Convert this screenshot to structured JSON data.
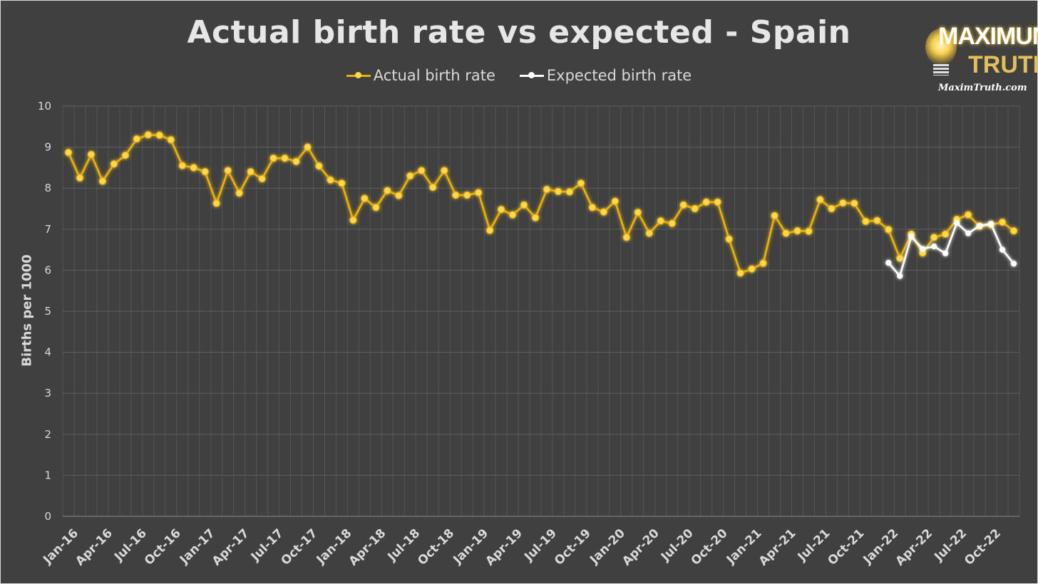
{
  "chart_data": {
    "type": "line",
    "title": "Actual birth rate vs expected - Spain",
    "ylabel": "Births per 1000",
    "xlabel": "",
    "ylim": [
      0,
      10
    ],
    "yticks": [
      0,
      1,
      2,
      3,
      4,
      5,
      6,
      7,
      8,
      9,
      10
    ],
    "grid": true,
    "legend_position": "top-center",
    "x_tick_labels": [
      "Jan-16",
      "Apr-16",
      "Jul-16",
      "Oct-16",
      "Jan-17",
      "Apr-17",
      "Jul-17",
      "Oct-17",
      "Jan-18",
      "Apr-18",
      "Jul-18",
      "Oct-18",
      "Jan-19",
      "Apr-19",
      "Jul-19",
      "Oct-19",
      "Jan-20",
      "Apr-20",
      "Jul-20",
      "Oct-20",
      "Jan-21",
      "Apr-21",
      "Jul-21",
      "Oct-21",
      "Jan-22",
      "Apr-22",
      "Jul-22",
      "Oct-22"
    ],
    "series": [
      {
        "name": "Actual birth rate",
        "color": "#e8b10c",
        "start_month": "Jan-16",
        "values": [
          8.87,
          8.25,
          8.82,
          8.17,
          8.59,
          8.8,
          9.2,
          9.3,
          9.29,
          9.18,
          8.55,
          8.5,
          8.4,
          7.63,
          8.43,
          7.88,
          8.4,
          8.23,
          8.73,
          8.73,
          8.65,
          9.0,
          8.54,
          8.2,
          8.12,
          7.22,
          7.75,
          7.53,
          7.94,
          7.82,
          8.3,
          8.43,
          8.02,
          8.43,
          7.83,
          7.83,
          7.89,
          6.97,
          7.48,
          7.35,
          7.59,
          7.28,
          7.97,
          7.92,
          7.91,
          8.12,
          7.53,
          7.42,
          7.68,
          6.8,
          7.41,
          6.9,
          7.2,
          7.14,
          7.59,
          7.5,
          7.66,
          7.66,
          6.76,
          5.93,
          6.03,
          6.17,
          7.33,
          6.9,
          6.96,
          6.95,
          7.72,
          7.5,
          7.64,
          7.63,
          7.19,
          7.21,
          6.99,
          6.29,
          6.88,
          6.42,
          6.8,
          6.88,
          7.24,
          7.35,
          7.07,
          7.11,
          7.17,
          6.96
        ]
      },
      {
        "name": "Expected birth rate",
        "color": "#ffffff",
        "start_month": "Jan-22",
        "values": [
          6.18,
          5.86,
          6.82,
          6.52,
          6.58,
          6.41,
          7.15,
          6.9,
          7.08,
          7.13,
          6.5,
          6.16
        ]
      }
    ]
  },
  "logo": {
    "word1": "MAXIMUM",
    "word2": "TRUTH",
    "url": "MaximTruth.com"
  }
}
